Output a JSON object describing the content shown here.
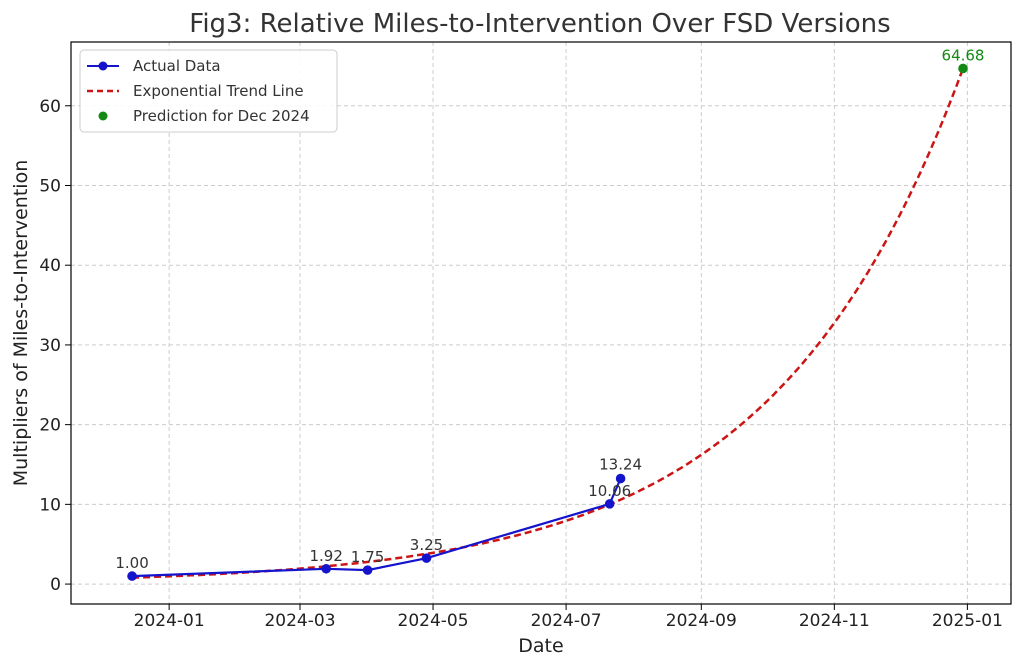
{
  "chart_data": {
    "type": "line",
    "title": "Fig3: Relative Miles-to-Intervention Over FSD Versions",
    "xlabel": "Date",
    "ylabel": "Multipliers of Miles-to-Intervention",
    "xlim": [
      "2023-11-17",
      "2025-01-21"
    ],
    "ylim": [
      -2.5,
      68
    ],
    "x_ticks": [
      "2024-01",
      "2024-03",
      "2024-05",
      "2024-07",
      "2024-09",
      "2024-11",
      "2025-01"
    ],
    "y_ticks": [
      0,
      10,
      20,
      30,
      40,
      50,
      60
    ],
    "grid": true,
    "legend_position": "top-left",
    "series": [
      {
        "name": "Actual Data",
        "kind": "line-markers",
        "color": "#1414cc",
        "points": [
          {
            "x": "2023-12-15",
            "y": 1.0,
            "label": "1.00"
          },
          {
            "x": "2024-03-13",
            "y": 1.92,
            "label": "1.92"
          },
          {
            "x": "2024-04-01",
            "y": 1.75,
            "label": "1.75"
          },
          {
            "x": "2024-04-28",
            "y": 3.25,
            "label": "3.25"
          },
          {
            "x": "2024-07-21",
            "y": 10.06,
            "label": "10.06"
          },
          {
            "x": "2024-07-26",
            "y": 13.24,
            "label": "13.24"
          }
        ]
      },
      {
        "name": "Exponential Trend Line",
        "kind": "dashed-line",
        "color": "#cc1414",
        "model": "exponential",
        "y_start": 0.8,
        "y_end": 64.68,
        "x_start": "2023-12-15",
        "x_end": "2024-12-30"
      },
      {
        "name": "Prediction for Dec 2024",
        "kind": "point",
        "color": "#138a13",
        "points": [
          {
            "x": "2024-12-30",
            "y": 64.68,
            "label": "64.68"
          }
        ]
      }
    ]
  }
}
